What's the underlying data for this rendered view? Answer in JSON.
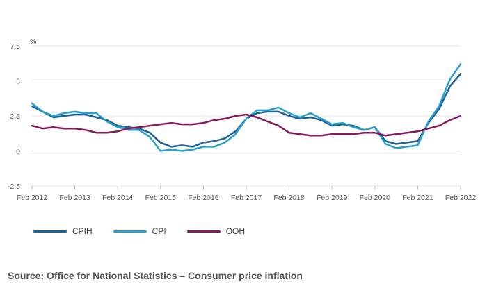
{
  "chart_data": {
    "type": "line",
    "unit_label": "%",
    "ylim": [
      -2.5,
      7.5
    ],
    "yticks": [
      -2.5,
      0,
      2.5,
      5,
      7.5
    ],
    "ytick_labels": [
      "-2.5",
      "0",
      "2.5",
      "5",
      "7.5"
    ],
    "xlim": [
      "2012-02",
      "2022-02"
    ],
    "xtick_labels": [
      "Feb 2012",
      "Feb 2013",
      "Feb 2014",
      "Feb 2015",
      "Feb 2016",
      "Feb 2017",
      "Feb 2018",
      "Feb 2019",
      "Feb 2020",
      "Feb 2021",
      "Feb 2022"
    ],
    "grid": true,
    "legend_position": "bottom-left",
    "series": [
      {
        "name": "CPIH",
        "color": "#206095",
        "x": [
          "2012-02",
          "2012-05",
          "2012-08",
          "2012-11",
          "2013-02",
          "2013-05",
          "2013-08",
          "2013-11",
          "2014-02",
          "2014-05",
          "2014-08",
          "2014-11",
          "2015-02",
          "2015-05",
          "2015-08",
          "2015-11",
          "2016-02",
          "2016-05",
          "2016-08",
          "2016-11",
          "2017-02",
          "2017-05",
          "2017-08",
          "2017-11",
          "2018-02",
          "2018-05",
          "2018-08",
          "2018-11",
          "2019-02",
          "2019-05",
          "2019-08",
          "2019-11",
          "2020-02",
          "2020-05",
          "2020-08",
          "2020-11",
          "2021-02",
          "2021-05",
          "2021-08",
          "2021-11",
          "2022-02"
        ],
        "y": [
          3.2,
          2.8,
          2.4,
          2.5,
          2.6,
          2.6,
          2.4,
          2.2,
          1.8,
          1.7,
          1.6,
          1.3,
          0.6,
          0.3,
          0.4,
          0.3,
          0.6,
          0.7,
          0.9,
          1.4,
          2.3,
          2.7,
          2.8,
          2.8,
          2.5,
          2.3,
          2.4,
          2.2,
          1.8,
          1.9,
          1.8,
          1.5,
          1.7,
          0.7,
          0.5,
          0.6,
          0.7,
          2.0,
          3.0,
          4.6,
          5.5
        ]
      },
      {
        "name": "CPI",
        "color": "#27a0cc",
        "x": [
          "2012-02",
          "2012-05",
          "2012-08",
          "2012-11",
          "2013-02",
          "2013-05",
          "2013-08",
          "2013-11",
          "2014-02",
          "2014-05",
          "2014-08",
          "2014-11",
          "2015-02",
          "2015-05",
          "2015-08",
          "2015-11",
          "2016-02",
          "2016-05",
          "2016-08",
          "2016-11",
          "2017-02",
          "2017-05",
          "2017-08",
          "2017-11",
          "2018-02",
          "2018-05",
          "2018-08",
          "2018-11",
          "2019-02",
          "2019-05",
          "2019-08",
          "2019-11",
          "2020-02",
          "2020-05",
          "2020-08",
          "2020-11",
          "2021-02",
          "2021-05",
          "2021-08",
          "2021-11",
          "2022-02"
        ],
        "y": [
          3.4,
          2.8,
          2.5,
          2.7,
          2.8,
          2.7,
          2.7,
          2.1,
          1.7,
          1.5,
          1.5,
          1.0,
          0.0,
          0.1,
          0.0,
          0.1,
          0.3,
          0.3,
          0.6,
          1.2,
          2.3,
          2.9,
          2.9,
          3.1,
          2.7,
          2.4,
          2.7,
          2.3,
          1.9,
          2.0,
          1.7,
          1.5,
          1.7,
          0.5,
          0.2,
          0.3,
          0.4,
          2.1,
          3.2,
          5.1,
          6.2
        ]
      },
      {
        "name": "OOH",
        "color": "#871a5b",
        "x": [
          "2012-02",
          "2012-05",
          "2012-08",
          "2012-11",
          "2013-02",
          "2013-05",
          "2013-08",
          "2013-11",
          "2014-02",
          "2014-05",
          "2014-08",
          "2014-11",
          "2015-02",
          "2015-05",
          "2015-08",
          "2015-11",
          "2016-02",
          "2016-05",
          "2016-08",
          "2016-11",
          "2017-02",
          "2017-05",
          "2017-08",
          "2017-11",
          "2018-02",
          "2018-05",
          "2018-08",
          "2018-11",
          "2019-02",
          "2019-05",
          "2019-08",
          "2019-11",
          "2020-02",
          "2020-05",
          "2020-08",
          "2020-11",
          "2021-02",
          "2021-05",
          "2021-08",
          "2021-11",
          "2022-02"
        ],
        "y": [
          1.8,
          1.6,
          1.7,
          1.6,
          1.6,
          1.5,
          1.3,
          1.3,
          1.4,
          1.6,
          1.7,
          1.8,
          1.9,
          2.0,
          1.9,
          1.9,
          2.0,
          2.2,
          2.3,
          2.5,
          2.6,
          2.4,
          2.1,
          1.8,
          1.3,
          1.2,
          1.1,
          1.1,
          1.2,
          1.2,
          1.2,
          1.3,
          1.3,
          1.1,
          1.2,
          1.3,
          1.4,
          1.6,
          1.8,
          2.2,
          2.5
        ]
      }
    ]
  },
  "source": "Source: Office for National Statistics – Consumer price inflation"
}
